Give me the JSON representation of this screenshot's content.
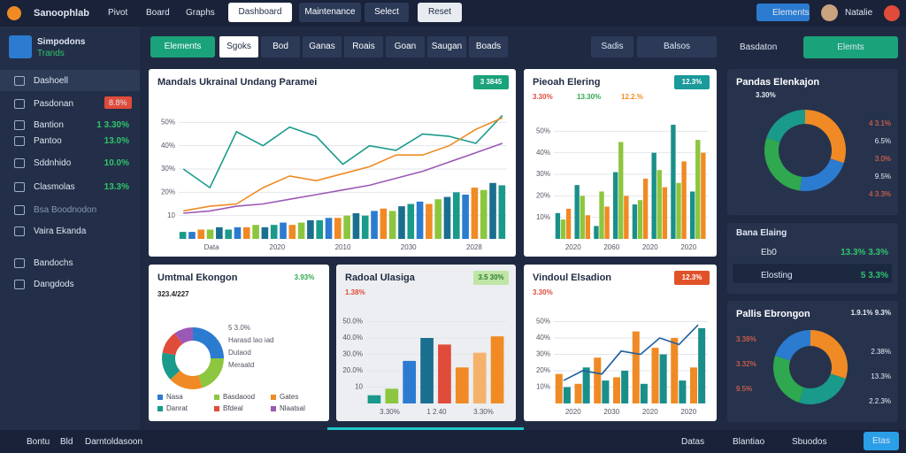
{
  "header": {
    "brand": "Sanoophlab",
    "nav": [
      "Pivot",
      "Board",
      "Graphs"
    ],
    "buttons": [
      "Dashboard",
      "Maintenance",
      "Select",
      "Reset"
    ],
    "badge": "Elements",
    "user": "Natalie"
  },
  "sidebar": {
    "logo_title": "Simpodons",
    "logo_sub": "Trands",
    "items": [
      {
        "label": "Dashoell"
      },
      {
        "label": "Pasdonan",
        "tag": "8.8%"
      },
      {
        "label": "Bantion",
        "value": "1 3.30%"
      },
      {
        "label": "Pantoo",
        "value": "13.0%"
      },
      {
        "label": "Sddnhido",
        "value": "10.0%"
      },
      {
        "label": "Clasmolas",
        "value": "13.3%"
      },
      {
        "label": "Bsa Boodnodon"
      },
      {
        "label": "Vaira Ekanda"
      },
      {
        "label": "Bandochs"
      },
      {
        "label": "Dangdods"
      }
    ]
  },
  "tabs": {
    "primary": "Elements",
    "items": [
      "Sgoks",
      "Bod",
      "Ganas",
      "Roais",
      "Goan",
      "Saugan",
      "Boads"
    ],
    "filters": [
      "Sadis",
      "Balsos"
    ],
    "right_label": "Basdaton",
    "right_button": "Elemts"
  },
  "footer": {
    "left": [
      "Bontu",
      "Bld",
      "Darntoldasoon"
    ],
    "right": [
      "Datas",
      "Blantiao",
      "Sbuodos",
      "Etas"
    ]
  },
  "panels": {
    "list": {
      "title": "Bana Elaing",
      "rows": [
        {
          "label": "Eb0",
          "value": "13.3% 3.3%"
        },
        {
          "label": "Elosting",
          "value": "5 3.3%"
        }
      ]
    }
  },
  "chart_data": [
    {
      "type": "combo",
      "title": "Mandals Ukrainal Undang Paramei",
      "badge": "3 3845",
      "ylim": [
        0,
        60
      ],
      "yticks": [
        10,
        {
          "value": 20,
          "label": "20%"
        },
        {
          "value": 30,
          "label": "30%"
        },
        {
          "value": 40,
          "label": "40%"
        },
        {
          "value": 50,
          "label": "50%"
        }
      ],
      "x_labels": [
        "Data",
        "2020",
        "2010",
        "2030",
        "2028"
      ],
      "series": [
        {
          "colors": [
            "#1a9a8a",
            "#2b7bd0",
            "#f08a24",
            "#8cc63f",
            "#1a6f8f"
          ],
          "values": [
            3,
            3,
            4,
            4,
            5,
            4,
            5,
            5,
            6,
            5,
            6,
            7,
            6,
            7,
            8,
            8,
            9,
            9,
            10,
            11,
            10,
            12,
            13,
            12,
            14,
            15,
            16,
            15,
            17,
            18,
            20,
            19,
            22,
            21,
            24,
            23
          ]
        },
        {
          "style": "line",
          "color": "#1a9a8a",
          "values": [
            30,
            22,
            46,
            40,
            48,
            44,
            32,
            40,
            38,
            45,
            44,
            41,
            53
          ]
        },
        {
          "style": "line",
          "color": "#f08a24",
          "values": [
            12,
            14,
            15,
            22,
            27,
            25,
            28,
            31,
            36,
            36,
            40,
            47,
            52
          ]
        },
        {
          "style": "line",
          "color": "#9b59b6",
          "values": [
            11,
            12,
            14,
            15,
            17,
            19,
            21,
            23,
            26,
            29,
            33,
            37,
            41
          ]
        }
      ]
    },
    {
      "type": "bar",
      "title": "Pieoah Elering",
      "badge": "12.3%",
      "notes": [
        "3.30%",
        "13.30%",
        "12.2.%"
      ],
      "ylim": [
        0,
        60
      ],
      "yticks": [
        {
          "value": 10,
          "label": "10%"
        },
        {
          "value": 20,
          "label": "20%"
        },
        {
          "value": 30,
          "label": "30%"
        },
        {
          "value": 40,
          "label": "40%"
        },
        {
          "value": 50,
          "label": "50%"
        }
      ],
      "x_labels": [
        "2020",
        "2060",
        "2020",
        "2020"
      ],
      "series": [
        {
          "color": "#1a8f8a",
          "values": [
            12,
            25,
            6,
            31,
            16,
            40,
            53,
            22
          ]
        },
        {
          "color": "#8cc63f",
          "values": [
            9,
            20,
            22,
            45,
            18,
            32,
            26,
            46
          ]
        },
        {
          "color": "#f08a24",
          "values": [
            14,
            11,
            15,
            20,
            28,
            24,
            36,
            40
          ]
        }
      ]
    },
    {
      "type": "donut",
      "title": "Pandas Elenkajon",
      "notes": [
        "3.30%",
        "4 3.1%",
        "6.5%",
        "3.0%",
        "9.5%",
        "4 3.3%"
      ],
      "values": [
        30,
        22,
        28,
        20
      ],
      "colors": [
        "#f08a24",
        "#2b7bd0",
        "#2fa84f",
        "#1a9a8a"
      ]
    },
    {
      "type": "donut",
      "title": "Umtmal Ekongon",
      "badge": "3.93%",
      "notes": [
        "323.4/227",
        "5 3.0%",
        "Harasd lao iad",
        "Dutaod",
        "Meraatd"
      ],
      "categories": [
        "Nasa",
        "Basdaood",
        "Gates",
        "Danrat",
        "Bfdeal",
        "Nlaatsal"
      ],
      "values": [
        25,
        20,
        18,
        15,
        12,
        10
      ],
      "colors": [
        "#2b7bd0",
        "#8cc63f",
        "#f08a24",
        "#1a9a8a",
        "#e04b3a",
        "#9b59b6"
      ]
    },
    {
      "type": "bar",
      "title": "Radoal Ulasiga",
      "badge": "3.5 30%",
      "notes": [
        "1.38%"
      ],
      "ylim": [
        0,
        60
      ],
      "yticks": [
        10,
        {
          "value": 20,
          "label": "20.0%"
        },
        {
          "value": 30,
          "label": "30.0%"
        },
        {
          "value": 40,
          "label": "40.0%"
        },
        {
          "value": 50,
          "label": "50.0%"
        }
      ],
      "x_labels": [
        "3.30%",
        "1 2.40",
        "3.30%"
      ],
      "series": [
        {
          "colors": [
            "#1a9a8a",
            "#8cc63f",
            "#2b7bd0",
            "#1a6f8f",
            "#e04b3a",
            "#f08a24",
            "#f5b26b",
            "#f08a24"
          ],
          "values": [
            5,
            9,
            26,
            40,
            36,
            22,
            31,
            41
          ]
        }
      ]
    },
    {
      "type": "bar",
      "title": "Vindoul Elsadion",
      "badge": "12.3%",
      "notes": [
        "3.30%"
      ],
      "ylim": [
        0,
        60
      ],
      "yticks": [
        {
          "value": 10,
          "label": "10%"
        },
        {
          "value": 20,
          "label": "20%"
        },
        {
          "value": 30,
          "label": "30%"
        },
        {
          "value": 40,
          "label": "40%"
        },
        {
          "value": 50,
          "label": "50%"
        }
      ],
      "x_labels": [
        "2020",
        "2030",
        "2020",
        "2020"
      ],
      "series": [
        {
          "color": "#f08a24",
          "values": [
            18,
            12,
            28,
            16,
            44,
            34,
            40,
            22
          ]
        },
        {
          "color": "#1a8f8a",
          "values": [
            10,
            22,
            14,
            20,
            12,
            30,
            14,
            46
          ]
        },
        {
          "style": "line",
          "color": "#1f5f9f",
          "values": [
            14,
            20,
            18,
            32,
            30,
            40,
            36,
            48
          ]
        }
      ]
    },
    {
      "type": "donut",
      "title": "Pallis Ebrongon",
      "notes": [
        "1.9.1% 9.3%",
        "3.38%",
        "2.38%",
        "3.32%",
        "13.3%",
        "9.5%",
        "2.2.3%"
      ],
      "values": [
        30,
        25,
        25,
        20
      ],
      "colors": [
        "#f08a24",
        "#1a9a8a",
        "#2fa84f",
        "#2b7bd0"
      ]
    }
  ]
}
